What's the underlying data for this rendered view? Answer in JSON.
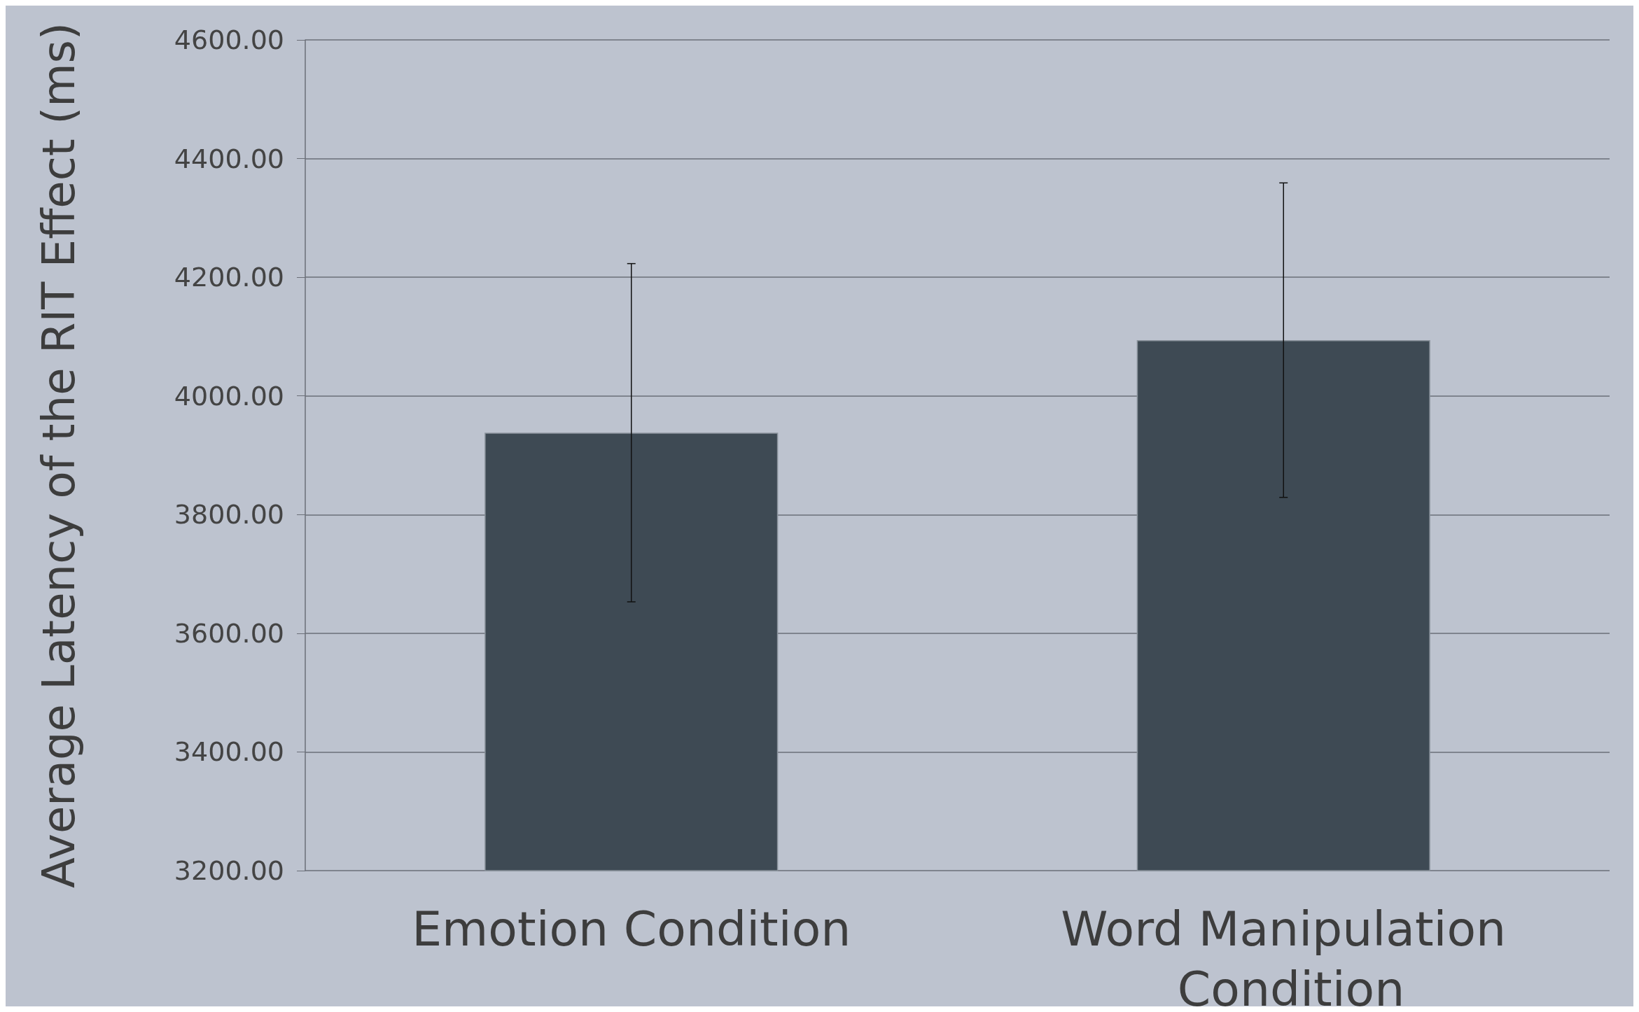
{
  "chart_data": {
    "type": "bar",
    "ylabel": "Average Latency of the RIT Effect (ms)",
    "categories": [
      "Emotion Condition",
      "Word Manipulation Condition"
    ],
    "values": [
      3938,
      4094
    ],
    "errors": [
      285,
      265
    ],
    "color": "#3e4a54",
    "ylim": [
      3200,
      4600
    ],
    "yticks": [
      {
        "value": 3200,
        "label": "3200.00"
      },
      {
        "value": 3400,
        "label": "3400.00"
      },
      {
        "value": 3600,
        "label": "3600.00"
      },
      {
        "value": 3800,
        "label": "3800.00"
      },
      {
        "value": 4000,
        "label": "4000.00"
      },
      {
        "value": 4200,
        "label": "4200.00"
      },
      {
        "value": 4400,
        "label": "4400.00"
      },
      {
        "value": 4600,
        "label": "4600.00"
      }
    ],
    "grid": "y"
  }
}
